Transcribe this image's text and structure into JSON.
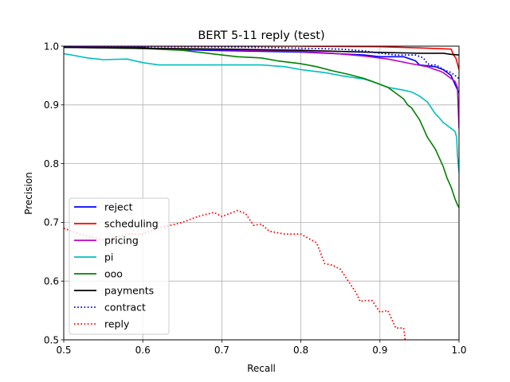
{
  "chart_data": {
    "type": "line",
    "title": "BERT 5-11 reply (test)",
    "xlabel": "Recall",
    "ylabel": "Precision",
    "xlim": [
      0.5,
      1.0
    ],
    "ylim": [
      0.5,
      1.0
    ],
    "xticks": [
      "0.5",
      "0.6",
      "0.7",
      "0.8",
      "0.9",
      "1.0"
    ],
    "yticks": [
      "0.5",
      "0.6",
      "0.7",
      "0.8",
      "0.9",
      "1.0"
    ],
    "grid": true,
    "legend_position": "lower-left",
    "series": [
      {
        "name": "reject",
        "color": "#0000ff",
        "style": "solid",
        "x": [
          0.5,
          0.6,
          0.62,
          0.68,
          0.8,
          0.88,
          0.9,
          0.93,
          0.945,
          0.95,
          0.97,
          0.98,
          0.99,
          0.995,
          1.0
        ],
        "y": [
          0.998,
          0.998,
          0.995,
          0.993,
          0.99,
          0.985,
          0.982,
          0.982,
          0.975,
          0.968,
          0.965,
          0.96,
          0.95,
          0.935,
          0.92
        ]
      },
      {
        "name": "scheduling",
        "color": "#ff0000",
        "style": "solid",
        "x": [
          0.5,
          0.8,
          0.9,
          0.95,
          0.99,
          0.993,
          0.996,
          0.998,
          1.0
        ],
        "y": [
          1.0,
          1.0,
          0.999,
          0.997,
          0.995,
          0.985,
          0.98,
          0.97,
          0.96
        ]
      },
      {
        "name": "pricing",
        "color": "#bf00bf",
        "style": "solid",
        "x": [
          0.5,
          0.6,
          0.7,
          0.8,
          0.84,
          0.88,
          0.91,
          0.94,
          0.96,
          0.97,
          0.975,
          0.98,
          0.985,
          0.99,
          0.995,
          0.998,
          1.0
        ],
        "y": [
          1.0,
          0.996,
          0.994,
          0.991,
          0.988,
          0.983,
          0.978,
          0.97,
          0.965,
          0.96,
          0.958,
          0.955,
          0.95,
          0.945,
          0.94,
          0.93,
          0.86
        ]
      },
      {
        "name": "pi",
        "color": "#00bfbf",
        "style": "solid",
        "x": [
          0.5,
          0.51,
          0.53,
          0.55,
          0.58,
          0.6,
          0.62,
          0.65,
          0.7,
          0.75,
          0.78,
          0.8,
          0.83,
          0.85,
          0.87,
          0.88,
          0.89,
          0.9,
          0.91,
          0.93,
          0.94,
          0.95,
          0.96,
          0.965,
          0.97,
          0.975,
          0.98,
          0.985,
          0.99,
          0.995,
          0.997,
          0.998,
          1.0
        ],
        "y": [
          0.987,
          0.985,
          0.98,
          0.977,
          0.978,
          0.972,
          0.968,
          0.968,
          0.968,
          0.968,
          0.965,
          0.96,
          0.955,
          0.95,
          0.946,
          0.944,
          0.94,
          0.935,
          0.93,
          0.925,
          0.922,
          0.915,
          0.905,
          0.895,
          0.885,
          0.878,
          0.87,
          0.865,
          0.86,
          0.855,
          0.845,
          0.815,
          0.785
        ]
      },
      {
        "name": "ooo",
        "color": "#008000",
        "style": "solid",
        "x": [
          0.5,
          0.55,
          0.6,
          0.65,
          0.7,
          0.72,
          0.75,
          0.77,
          0.8,
          0.82,
          0.84,
          0.86,
          0.88,
          0.89,
          0.9,
          0.91,
          0.92,
          0.93,
          0.935,
          0.94,
          0.945,
          0.95,
          0.955,
          0.96,
          0.965,
          0.97,
          0.975,
          0.98,
          0.985,
          0.99,
          0.995,
          0.998,
          1.0
        ],
        "y": [
          0.998,
          0.997,
          0.996,
          0.993,
          0.985,
          0.982,
          0.98,
          0.975,
          0.97,
          0.965,
          0.958,
          0.952,
          0.945,
          0.94,
          0.935,
          0.93,
          0.92,
          0.91,
          0.9,
          0.895,
          0.885,
          0.875,
          0.86,
          0.845,
          0.835,
          0.825,
          0.81,
          0.795,
          0.775,
          0.76,
          0.74,
          0.73,
          0.725
        ]
      },
      {
        "name": "payments",
        "color": "#000000",
        "style": "solid",
        "x": [
          0.5,
          0.7,
          0.8,
          0.88,
          0.95,
          0.98,
          0.99,
          1.0
        ],
        "y": [
          0.998,
          0.995,
          0.993,
          0.99,
          0.988,
          0.988,
          0.986,
          0.985
        ]
      },
      {
        "name": "contract",
        "color": "#0000bf",
        "style": "dotted",
        "x": [
          0.5,
          0.65,
          0.75,
          0.85,
          0.88,
          0.9,
          0.92,
          0.945,
          0.955,
          0.96,
          0.965,
          0.97,
          0.975,
          0.98,
          0.99,
          1.0
        ],
        "y": [
          0.999,
          0.999,
          0.998,
          0.995,
          0.992,
          0.988,
          0.985,
          0.985,
          0.98,
          0.97,
          0.968,
          0.968,
          0.965,
          0.96,
          0.955,
          0.945
        ]
      },
      {
        "name": "reply",
        "color": "#ff0000",
        "style": "dotted",
        "x": [
          0.5,
          0.52,
          0.55,
          0.58,
          0.6,
          0.62,
          0.65,
          0.67,
          0.69,
          0.7,
          0.72,
          0.73,
          0.74,
          0.75,
          0.76,
          0.78,
          0.8,
          0.82,
          0.83,
          0.84,
          0.85,
          0.86,
          0.87,
          0.875,
          0.88,
          0.89,
          0.9,
          0.91,
          0.92,
          0.93,
          0.932
        ],
        "y": [
          0.69,
          0.68,
          0.67,
          0.68,
          0.68,
          0.69,
          0.7,
          0.71,
          0.717,
          0.71,
          0.72,
          0.715,
          0.695,
          0.697,
          0.685,
          0.68,
          0.68,
          0.665,
          0.63,
          0.627,
          0.62,
          0.6,
          0.58,
          0.565,
          0.567,
          0.567,
          0.547,
          0.55,
          0.52,
          0.52,
          0.5
        ]
      }
    ]
  }
}
